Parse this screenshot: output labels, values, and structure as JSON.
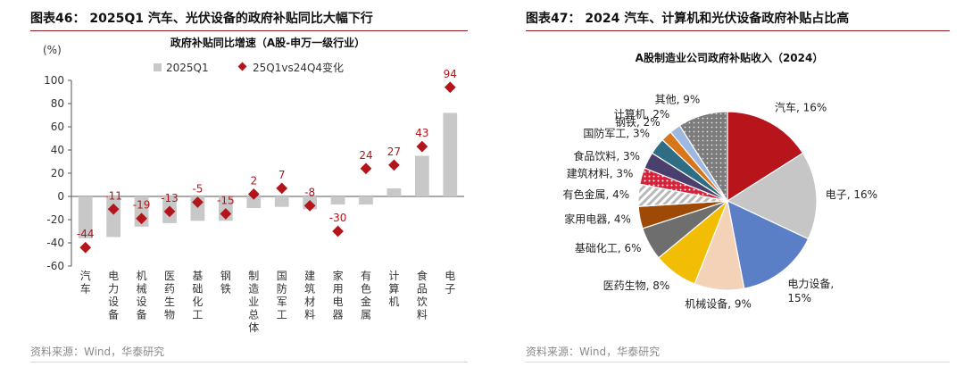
{
  "left": {
    "figure_title": "图表46： 2025Q1 汽车、光伏设备的政府补贴同比大幅下行",
    "source": "资料来源：Wind，华泰研究"
  },
  "right": {
    "figure_title": "图表47： 2024 汽车、计算机和光伏设备政府补贴占比高",
    "source": "资料来源：Wind，华泰研究"
  },
  "chart_data": [
    {
      "type": "bar",
      "title": "政府补贴同比增速（A股-申万一级行业）",
      "ylabel": "(%)",
      "xlabel": "",
      "ylim": [
        -60,
        100
      ],
      "yticks": [
        -60,
        -40,
        -20,
        0,
        20,
        40,
        60,
        80,
        100
      ],
      "grid": false,
      "legend_position": "top",
      "categories": [
        "汽车",
        "电力设备",
        "机械设备",
        "医药生物",
        "基础化工",
        "钢铁",
        "制造业总体",
        "国防军工",
        "建筑材料",
        "家用电器",
        "有色金属",
        "计算机",
        "食品饮料",
        "电子"
      ],
      "series": [
        {
          "name": "2025Q1",
          "kind": "bar",
          "color": "#c8c8c8",
          "values": [
            -36,
            -35,
            -26,
            -23,
            -21,
            -21,
            -10,
            -9,
            -11,
            -7,
            -7,
            7,
            35,
            72
          ]
        },
        {
          "name": "25Q1vs24Q4变化",
          "kind": "marker",
          "color": "#b3151b",
          "values": [
            -44,
            -11,
            -19,
            -13,
            -5,
            -15,
            2,
            7,
            -8,
            -30,
            24,
            27,
            43,
            94
          ],
          "labels": [
            "-44",
            "-11",
            "-19",
            "-13",
            "-5",
            "-15",
            "2",
            "7",
            "-8",
            "-30",
            "24",
            "27",
            "43",
            "94"
          ]
        }
      ]
    },
    {
      "type": "pie",
      "title": "A股制造业公司政府补贴收入（2024）",
      "slices": [
        {
          "label": "汽车",
          "value": 16,
          "display": "汽车, 16%",
          "color": "#b7141b",
          "pattern": null
        },
        {
          "label": "电子",
          "value": 16,
          "display": "电子, 16%",
          "color": "#c6c6c6",
          "pattern": null
        },
        {
          "label": "电力设备",
          "value": 15,
          "display": "电力设备,\n15%",
          "color": "#5b7fc6",
          "pattern": null
        },
        {
          "label": "机械设备",
          "value": 9,
          "display": "机械设备, 9%",
          "color": "#f3d2b8",
          "pattern": null
        },
        {
          "label": "医药生物",
          "value": 8,
          "display": "医药生物, 8%",
          "color": "#f1bd05",
          "pattern": null
        },
        {
          "label": "基础化工",
          "value": 6,
          "display": "基础化工, 6%",
          "color": "#6e6e6e",
          "pattern": null
        },
        {
          "label": "家用电器",
          "value": 4,
          "display": "家用电器, 4%",
          "color": "#9e4a06",
          "pattern": null
        },
        {
          "label": "有色金属",
          "value": 4,
          "display": "有色金属, 4%",
          "color": "#c2c2c2",
          "pattern": "stripes"
        },
        {
          "label": "建筑材料",
          "value": 3,
          "display": "建筑材料, 3%",
          "color": "#d6223a",
          "pattern": "dots"
        },
        {
          "label": "食品饮料",
          "value": 3,
          "display": "食品饮料, 3%",
          "color": "#4b3f6e",
          "pattern": null
        },
        {
          "label": "国防军工",
          "value": 3,
          "display": "国防军工, 3%",
          "color": "#2e6d83",
          "pattern": null
        },
        {
          "label": "钢铁",
          "value": 2,
          "display": "钢铁, 2%",
          "color": "#d9751a",
          "pattern": null
        },
        {
          "label": "计算机",
          "value": 2,
          "display": "计算机, 2%",
          "color": "#9fb8e2",
          "pattern": null
        },
        {
          "label": "其他",
          "value": 9,
          "display": "其他, 9%",
          "color": "#808080",
          "pattern": "dots-light"
        }
      ]
    }
  ]
}
